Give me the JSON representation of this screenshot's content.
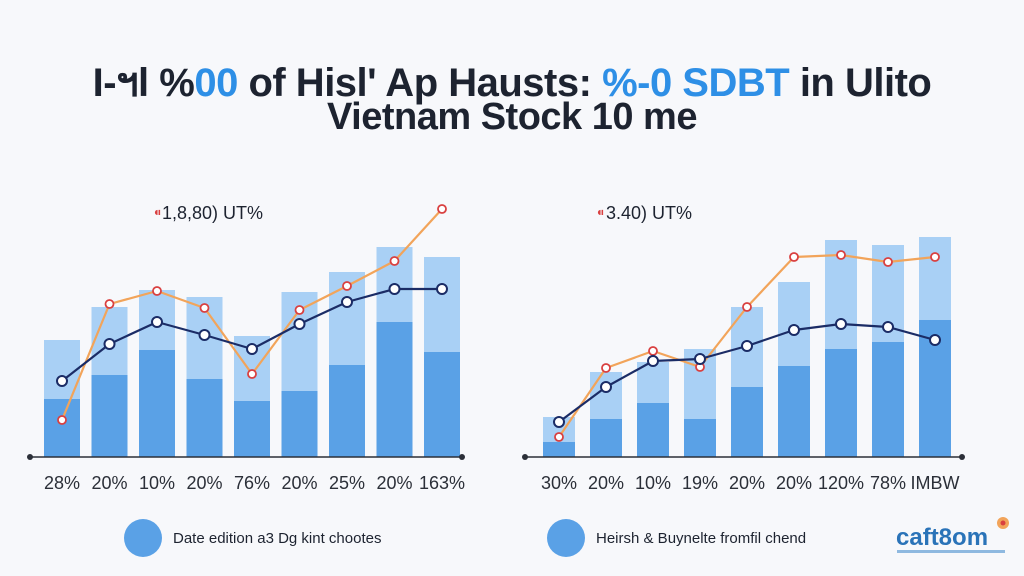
{
  "title": {
    "line1_part1": "I-ฯl %",
    "line1_accent1": "00",
    "line1_part2": " of Hisl' Ap Ηausts: ",
    "line1_accent2": "%-0 SDBT",
    "line1_part3": " in Ulito",
    "line2": "Vietnam Stock 10 me"
  },
  "colors": {
    "bar_dark": "#5aa1e6",
    "bar_light": "#a9d0f5",
    "line_navy": "#1b2c66",
    "line_orange": "#f2a45a",
    "marker_red": "#d94040",
    "legend_dot": "#5aa1e6",
    "title_accent": "#2e8fe6"
  },
  "chart_data": [
    {
      "type": "bar",
      "rate_label": "1,8,80) UT%",
      "categories": [
        "28%",
        "20%",
        "10%",
        "20%",
        "76%",
        "20%",
        "25%",
        "20%",
        "163%"
      ],
      "y_range": [
        0,
        310
      ],
      "series": [
        {
          "values": [
            58,
            82,
            107,
            78,
            56,
            66,
            92,
            135,
            105
          ]
        },
        {
          "values": [
            117,
            150,
            167,
            160,
            121,
            165,
            185,
            210,
            200
          ]
        },
        {
          "values": [
            76,
            113,
            135,
            122,
            108,
            133,
            155,
            168,
            168
          ]
        },
        {
          "values": [
            37,
            153,
            166,
            149,
            83,
            147,
            171,
            196,
            248
          ]
        }
      ],
      "legend": "Date edition a3 Dg kint chootes"
    },
    {
      "type": "bar",
      "rate_label": "3.40) UT%",
      "categories": [
        "30%",
        "20%",
        "10%",
        "19%",
        "20%",
        "20%",
        "120%",
        "78%",
        "IMBW"
      ],
      "y_range": [
        0,
        310
      ],
      "series": [
        {
          "values": [
            15,
            38,
            54,
            38,
            70,
            91,
            108,
            115,
            137
          ]
        },
        {
          "values": [
            40,
            85,
            95,
            108,
            150,
            175,
            217,
            212,
            220
          ]
        },
        {
          "values": [
            35,
            70,
            96,
            98,
            111,
            127,
            133,
            130,
            117
          ]
        },
        {
          "values": [
            20,
            89,
            106,
            90,
            150,
            200,
            202,
            195,
            200
          ]
        }
      ],
      "legend": "Heirsh & Buynelte fromfil chend"
    }
  ],
  "logo": {
    "text": "caft8om"
  }
}
